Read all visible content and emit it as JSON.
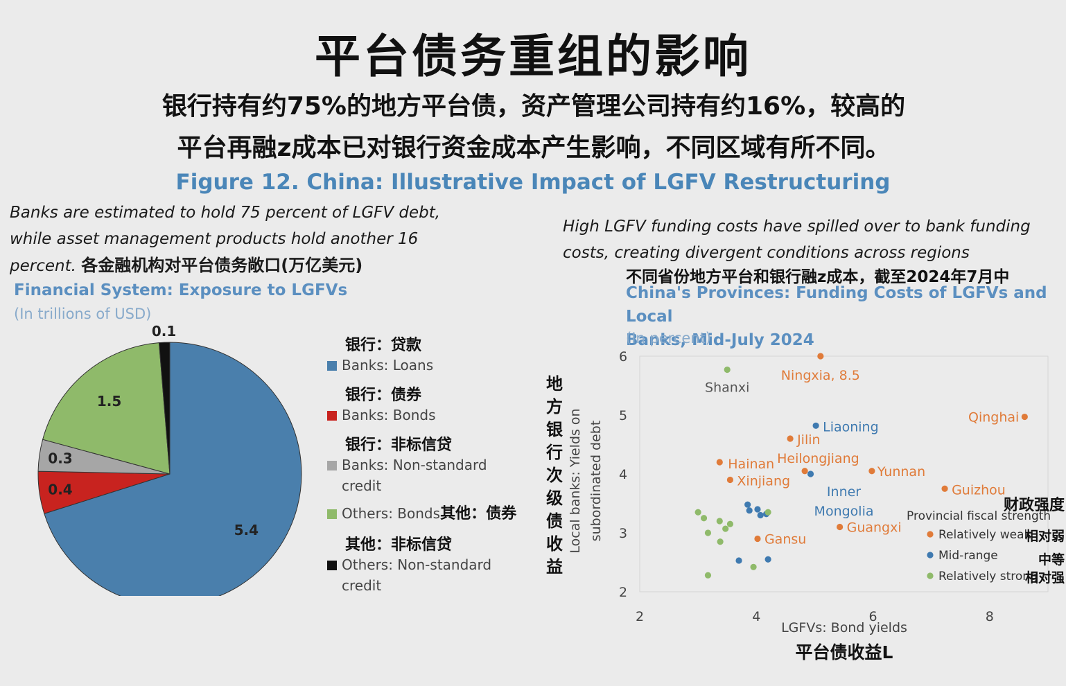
{
  "heading": {
    "title": "平台债务重组的影响",
    "line1": "银行持有约75%的地方平台债，资产管理公司持有约16%，较高的",
    "line2": "平台再融z成本已对银行资金成本产生影响，不同区域有所不同。",
    "figure_title": "Figure 12. China: Illustrative Impact of LGFV Restructuring"
  },
  "left": {
    "note_l1": "Banks are estimated to hold 75 percent of LGFV debt,",
    "note_l2": "while asset management products hold another 16",
    "note_l3": "percent.",
    "note_zh": "各金融机构对平台债务敞口(万亿美元)",
    "chart_title": "Financial System: Exposure to LGFVs",
    "chart_sub": "(In trillions of USD)"
  },
  "right": {
    "note_l1": "High LGFV funding costs have spilled over to bank funding",
    "note_l2": "costs, creating divergent conditions across regions",
    "note_zh": "不同省份地方平台和银行融z成本，截至2024年7月中",
    "chart_title_l1": "China's Provinces: Funding Costs of LGFVs and Local",
    "chart_title_l2": "Banks, Mid-July 2024",
    "chart_sub": "(In percent)"
  },
  "colors": {
    "banks_loans": "#4a7fac",
    "banks_bonds": "#c8231f",
    "banks_nonstd": "#a6a6a6",
    "others_bonds": "#8fba6a",
    "others_nonstd": "#111111",
    "weak": "#e07b39",
    "mid": "#3f7ab0",
    "strong": "#8fba6a"
  },
  "chart_data": [
    {
      "type": "pie",
      "title": "Financial System: Exposure to LGFVs",
      "subtitle": "(In trillions of USD)",
      "slices": [
        {
          "name": "Banks: Loans",
          "name_zh": "银行：贷款",
          "value": 5.4,
          "label": "5.4",
          "color_key": "banks_loans"
        },
        {
          "name": "Banks: Bonds",
          "name_zh": "银行：债券",
          "value": 0.4,
          "label": "0.4",
          "color_key": "banks_bonds"
        },
        {
          "name": "Banks: Non-standard credit",
          "name_l1": "Banks: Non-standard",
          "name_l2": "credit",
          "name_zh": "银行：非标信贷",
          "value": 0.3,
          "label": "0.3",
          "color_key": "banks_nonstd"
        },
        {
          "name": "Others: Bonds",
          "name_zh": "其他：债券",
          "value": 1.5,
          "label": "1.5",
          "color_key": "others_bonds"
        },
        {
          "name": "Others: Non-standard credit",
          "name_l1": "Others: Non-standard",
          "name_l2": "credit",
          "name_zh": "其他：非标信贷",
          "value": 0.1,
          "label": "0.1",
          "color_key": "others_nonstd"
        }
      ]
    },
    {
      "type": "scatter",
      "title": "China's Provinces: Funding Costs of LGFVs and Local Banks, Mid-July 2024",
      "subtitle": "(In percent)",
      "xlabel": "LGFVs: Bond yields",
      "xlabel_zh": "平台债收益L",
      "ylabel_l1": "Local banks: Yields on",
      "ylabel_l2": "subordinated debt",
      "ylabel_zh": "地方银行次级债收益",
      "xlim": [
        2,
        9
      ],
      "ylim": [
        2,
        6
      ],
      "xticks": [
        "2",
        "4",
        "6",
        "8"
      ],
      "yticks": [
        "2",
        "3",
        "4",
        "5",
        "6"
      ],
      "legend_title": "Provincial fiscal strength",
      "legend_title_zh": "财政强度",
      "legend": [
        {
          "key": "weak",
          "label": "Relatively weak",
          "label_zh": "相对弱"
        },
        {
          "key": "mid",
          "label": "Mid-range",
          "label_zh": "中等"
        },
        {
          "key": "strong",
          "label": "Relatively strong",
          "label_zh": "相对强"
        }
      ],
      "points": [
        {
          "x": 5.1,
          "y": 6.0,
          "group": "weak",
          "label": "Ningxia, 8.5"
        },
        {
          "x": 8.6,
          "y": 4.97,
          "group": "weak",
          "label": "Qinghai"
        },
        {
          "x": 4.58,
          "y": 4.6,
          "group": "weak",
          "label": "Jilin"
        },
        {
          "x": 3.37,
          "y": 4.2,
          "group": "weak",
          "label": "Hainan"
        },
        {
          "x": 4.83,
          "y": 4.05,
          "group": "weak",
          "label": "Heilongjiang"
        },
        {
          "x": 5.98,
          "y": 4.05,
          "group": "weak",
          "label": "Yunnan"
        },
        {
          "x": 3.55,
          "y": 3.9,
          "group": "weak",
          "label": "Xinjiang"
        },
        {
          "x": 7.23,
          "y": 3.75,
          "group": "weak",
          "label": "Guizhou"
        },
        {
          "x": 5.43,
          "y": 3.1,
          "group": "weak",
          "label": "Guangxi"
        },
        {
          "x": 4.02,
          "y": 2.9,
          "group": "weak",
          "label": "Gansu"
        },
        {
          "x": 5.02,
          "y": 4.82,
          "group": "mid",
          "label": "Liaoning"
        },
        {
          "x": 4.93,
          "y": 4.0,
          "group": "mid",
          "label": "Inner Mongolia"
        },
        {
          "x": 3.85,
          "y": 3.48,
          "group": "mid",
          "label": ""
        },
        {
          "x": 3.88,
          "y": 3.38,
          "group": "mid",
          "label": ""
        },
        {
          "x": 4.02,
          "y": 3.4,
          "group": "mid",
          "label": ""
        },
        {
          "x": 4.07,
          "y": 3.3,
          "group": "mid",
          "label": ""
        },
        {
          "x": 4.17,
          "y": 3.32,
          "group": "mid",
          "label": ""
        },
        {
          "x": 3.7,
          "y": 2.53,
          "group": "mid",
          "label": ""
        },
        {
          "x": 4.2,
          "y": 2.55,
          "group": "mid",
          "label": ""
        },
        {
          "x": 3.5,
          "y": 5.77,
          "group": "strong",
          "label": "Shanxi"
        },
        {
          "x": 3.0,
          "y": 3.35,
          "group": "strong",
          "label": ""
        },
        {
          "x": 3.1,
          "y": 3.25,
          "group": "strong",
          "label": ""
        },
        {
          "x": 3.37,
          "y": 3.2,
          "group": "strong",
          "label": ""
        },
        {
          "x": 3.55,
          "y": 3.15,
          "group": "strong",
          "label": ""
        },
        {
          "x": 3.47,
          "y": 3.07,
          "group": "strong",
          "label": ""
        },
        {
          "x": 3.17,
          "y": 3.0,
          "group": "strong",
          "label": ""
        },
        {
          "x": 3.38,
          "y": 2.85,
          "group": "strong",
          "label": ""
        },
        {
          "x": 4.2,
          "y": 3.35,
          "group": "strong",
          "label": ""
        },
        {
          "x": 3.95,
          "y": 2.42,
          "group": "strong",
          "label": ""
        },
        {
          "x": 3.17,
          "y": 2.28,
          "group": "strong",
          "label": ""
        }
      ]
    }
  ]
}
